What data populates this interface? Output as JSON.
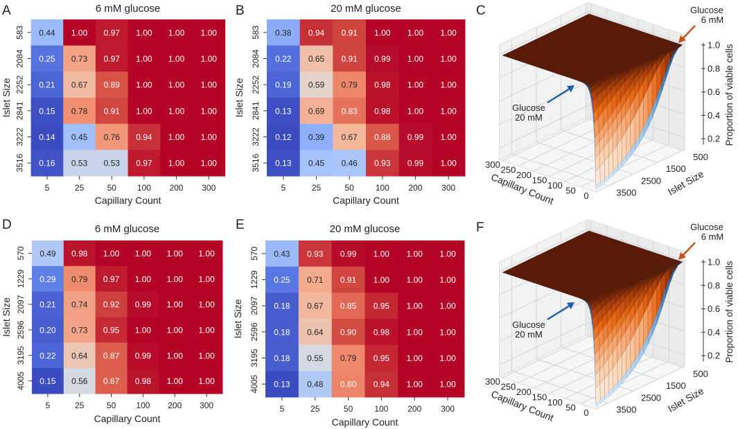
{
  "chart_data": [
    {
      "panel": "A",
      "type": "heatmap",
      "title": "6 mM glucose",
      "xlabel": "Capillary Count",
      "ylabel": "Islet Size",
      "x_categories": [
        "5",
        "25",
        "50",
        "100",
        "200",
        "300"
      ],
      "y_categories": [
        "583",
        "2084",
        "2252",
        "2841",
        "3222",
        "3516"
      ],
      "values": [
        [
          0.44,
          1.0,
          0.97,
          1.0,
          1.0,
          1.0
        ],
        [
          0.25,
          0.73,
          0.97,
          1.0,
          1.0,
          1.0
        ],
        [
          0.21,
          0.67,
          0.89,
          1.0,
          1.0,
          1.0
        ],
        [
          0.15,
          0.78,
          0.91,
          1.0,
          1.0,
          1.0
        ],
        [
          0.14,
          0.45,
          0.76,
          0.94,
          1.0,
          1.0
        ],
        [
          0.16,
          0.53,
          0.53,
          0.97,
          1.0,
          1.0
        ]
      ],
      "colormap": "coolwarm"
    },
    {
      "panel": "B",
      "type": "heatmap",
      "title": "20 mM glucose",
      "xlabel": "Capillary Count",
      "ylabel": "Islet Size",
      "x_categories": [
        "5",
        "25",
        "50",
        "100",
        "200",
        "300"
      ],
      "y_categories": [
        "583",
        "2084",
        "2252",
        "2841",
        "3222",
        "3516"
      ],
      "values": [
        [
          0.38,
          0.94,
          0.91,
          1.0,
          1.0,
          1.0
        ],
        [
          0.22,
          0.65,
          0.91,
          0.99,
          1.0,
          1.0
        ],
        [
          0.19,
          0.59,
          0.79,
          0.98,
          1.0,
          1.0
        ],
        [
          0.13,
          0.69,
          0.83,
          0.98,
          1.0,
          1.0
        ],
        [
          0.12,
          0.39,
          0.67,
          0.88,
          0.99,
          1.0
        ],
        [
          0.13,
          0.45,
          0.46,
          0.93,
          0.99,
          1.0
        ]
      ],
      "colormap": "coolwarm"
    },
    {
      "panel": "C",
      "type": "surface",
      "xlabel": "Capillary Count",
      "ylabel": "Islet Size",
      "zlabel": "Proportion of viable cells",
      "x_ticks": [
        "300",
        "250",
        "200",
        "150",
        "100",
        "50",
        "0"
      ],
      "y_ticks": [
        "500",
        "1500",
        "2500",
        "3500"
      ],
      "z_ticks": [
        "0.2",
        "0.4",
        "0.6",
        "0.8",
        "1.0"
      ],
      "xlim": [
        0,
        300
      ],
      "ylim": [
        500,
        4000
      ],
      "zlim": [
        0.1,
        1.0
      ],
      "series": [
        {
          "name": "Glucose 6 mM",
          "color": "#c2531b"
        },
        {
          "name": "Glucose 20 mM",
          "color": "#1f5fa8"
        }
      ],
      "annotations": [
        {
          "series": "Glucose 6 mM",
          "lines": [
            "Glucose",
            "6 mM"
          ]
        },
        {
          "series": "Glucose 20 mM",
          "lines": [
            "Glucose",
            "20 mM"
          ]
        }
      ]
    },
    {
      "panel": "D",
      "type": "heatmap",
      "title": "6 mM glucose",
      "xlabel": "Capillary Count",
      "ylabel": "Islet Size",
      "x_categories": [
        "5",
        "25",
        "50",
        "100",
        "200",
        "300"
      ],
      "y_categories": [
        "570",
        "1229",
        "2097",
        "2596",
        "3195",
        "4005"
      ],
      "values": [
        [
          0.49,
          0.98,
          1.0,
          1.0,
          1.0,
          1.0
        ],
        [
          0.29,
          0.79,
          0.97,
          1.0,
          1.0,
          1.0
        ],
        [
          0.21,
          0.74,
          0.92,
          0.99,
          1.0,
          1.0
        ],
        [
          0.2,
          0.73,
          0.95,
          1.0,
          1.0,
          1.0
        ],
        [
          0.22,
          0.64,
          0.87,
          0.99,
          1.0,
          1.0
        ],
        [
          0.15,
          0.56,
          0.87,
          0.98,
          1.0,
          1.0
        ]
      ],
      "colormap": "coolwarm"
    },
    {
      "panel": "E",
      "type": "heatmap",
      "title": "20 mM glucose",
      "xlabel": "Capillary Count",
      "ylabel": "Islet Size",
      "x_categories": [
        "5",
        "25",
        "50",
        "100",
        "200",
        "300"
      ],
      "y_categories": [
        "570",
        "1229",
        "2097",
        "2596",
        "3195",
        "4005"
      ],
      "values": [
        [
          0.43,
          0.93,
          0.99,
          1.0,
          1.0,
          1.0
        ],
        [
          0.25,
          0.71,
          0.91,
          1.0,
          1.0,
          1.0
        ],
        [
          0.18,
          0.67,
          0.85,
          0.95,
          1.0,
          1.0
        ],
        [
          0.18,
          0.64,
          0.9,
          0.98,
          1.0,
          1.0
        ],
        [
          0.18,
          0.55,
          0.79,
          0.95,
          1.0,
          1.0
        ],
        [
          0.13,
          0.48,
          0.8,
          0.94,
          1.0,
          1.0
        ]
      ],
      "colormap": "coolwarm"
    },
    {
      "panel": "F",
      "type": "surface",
      "xlabel": "Capillary Count",
      "ylabel": "Islet Size",
      "zlabel": "Proportion of viable cells",
      "x_ticks": [
        "300",
        "250",
        "200",
        "150",
        "100",
        "50",
        "0"
      ],
      "y_ticks": [
        "500",
        "1500",
        "2500",
        "3500"
      ],
      "z_ticks": [
        "0.2",
        "0.4",
        "0.6",
        "0.8",
        "1.0"
      ],
      "xlim": [
        0,
        300
      ],
      "ylim": [
        500,
        4000
      ],
      "zlim": [
        0.1,
        1.0
      ],
      "series": [
        {
          "name": "Glucose 6 mM",
          "color": "#c2531b"
        },
        {
          "name": "Glucose 20 mM",
          "color": "#1f5fa8"
        }
      ],
      "annotations": [
        {
          "series": "Glucose 6 mM",
          "lines": [
            "Glucose",
            "6 mM"
          ]
        },
        {
          "series": "Glucose 20 mM",
          "lines": [
            "Glucose",
            "20 mM"
          ]
        }
      ]
    }
  ]
}
